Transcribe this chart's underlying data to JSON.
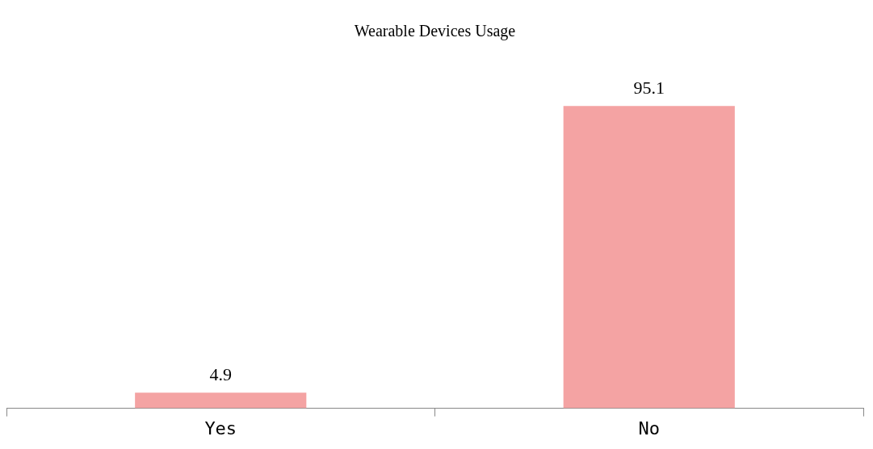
{
  "chart_data": {
    "type": "bar",
    "title": "Wearable Devices Usage",
    "categories": [
      "Yes",
      "No"
    ],
    "values": [
      4.9,
      95.1
    ],
    "color": "#f4a3a3",
    "data_labels": true,
    "grid": false,
    "legend": false
  }
}
